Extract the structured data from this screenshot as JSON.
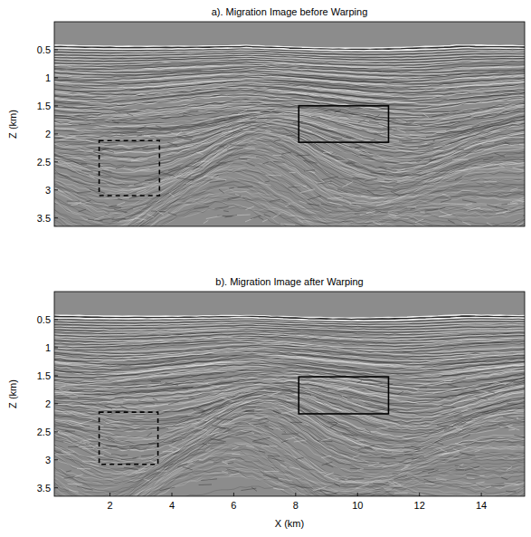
{
  "chart_data": [
    {
      "type": "image",
      "title": "a). Migration Image before Warping",
      "y_label": "Z (km)",
      "xlim": [
        0.2,
        15.4
      ],
      "ylim": [
        0,
        3.65
      ],
      "yticks": [
        0.5,
        1,
        1.5,
        2,
        2.5,
        3,
        3.5
      ],
      "tick_labels": "y",
      "boxes": [
        {
          "x": [
            8.1,
            11.0
          ],
          "z": [
            1.5,
            2.15
          ],
          "line_style": "solid"
        },
        {
          "x": [
            1.65,
            3.6
          ],
          "z": [
            2.12,
            3.1
          ],
          "line_style": "dashed"
        }
      ]
    },
    {
      "type": "image",
      "title": "b). Migration Image after Warping",
      "x_label": "X (km)",
      "y_label": "Z (km)",
      "xlim": [
        0.2,
        15.4
      ],
      "ylim": [
        0,
        3.65
      ],
      "xticks": [
        2,
        4,
        6,
        8,
        10,
        12,
        14
      ],
      "yticks": [
        0.5,
        1,
        1.5,
        2,
        2.5,
        3,
        3.5
      ],
      "boxes": [
        {
          "x": [
            8.1,
            11.0
          ],
          "z": [
            1.52,
            2.18
          ],
          "line_style": "solid"
        },
        {
          "x": [
            1.65,
            3.55
          ],
          "z": [
            2.15,
            3.08
          ],
          "line_style": "dashed"
        }
      ]
    }
  ]
}
